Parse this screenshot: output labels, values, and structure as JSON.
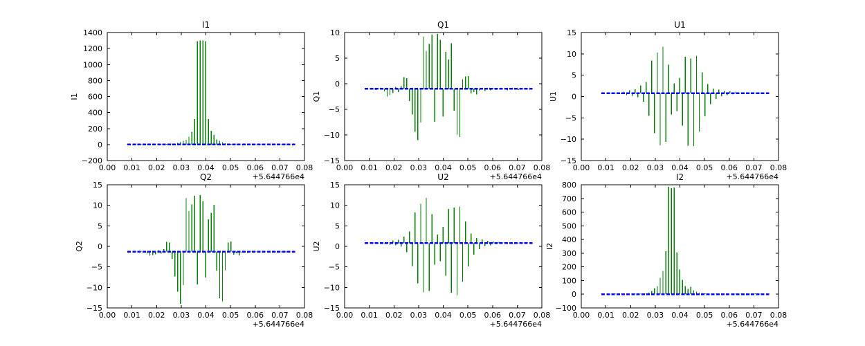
{
  "figure": {
    "background": "#ffffff",
    "axes_color": "#000000",
    "text_color": "#000000",
    "series_colors": {
      "spikes_green": "#008000",
      "baseline_blue": "#0000ff"
    },
    "grid": false,
    "legend": false
  },
  "chart_data": {
    "type": "line",
    "style": "2x3 grid of vertical-spike time-series (green spikes from a dashed blue flat baseline), matplotlib classic style",
    "x_offset_text": "+5.644766e4",
    "xlim": [
      0.0,
      0.08
    ],
    "xticks": [
      0.0,
      0.01,
      0.02,
      0.03,
      0.04,
      0.05,
      0.06,
      0.07,
      0.08
    ],
    "xtick_labels": [
      "0.00",
      "0.01",
      "0.02",
      "0.03",
      "0.04",
      "0.05",
      "0.06",
      "0.07",
      "0.08"
    ],
    "x_shared": [
      0.0082,
      0.00933,
      0.01047,
      0.0116,
      0.01273,
      0.01387,
      0.015,
      0.01613,
      0.01727,
      0.0184,
      0.01953,
      0.02067,
      0.0218,
      0.02293,
      0.02407,
      0.0252,
      0.02633,
      0.02747,
      0.0286,
      0.02973,
      0.03087,
      0.032,
      0.03313,
      0.03427,
      0.0354,
      0.03653,
      0.03767,
      0.0388,
      0.03993,
      0.04107,
      0.0422,
      0.04333,
      0.04447,
      0.0456,
      0.04673,
      0.04787,
      0.049,
      0.05013,
      0.05127,
      0.0524,
      0.05353,
      0.05467,
      0.0558,
      0.05693,
      0.05807,
      0.0592,
      0.06033,
      0.06147,
      0.0626,
      0.06373,
      0.06487,
      0.066,
      0.06713,
      0.06827,
      0.0694,
      0.07053,
      0.07167,
      0.0728,
      0.07393,
      0.07507,
      0.0762
    ],
    "subplots": [
      {
        "title": "I1",
        "ylabel": "I1",
        "ylim": [
          -200,
          1400
        ],
        "yticks": [
          -200,
          0,
          200,
          400,
          600,
          800,
          1000,
          1200,
          1400
        ],
        "baseline": 0,
        "values": [
          2,
          4,
          1,
          5,
          3,
          2,
          6,
          3,
          4,
          2,
          5,
          3,
          2,
          4,
          6,
          8,
          10,
          14,
          20,
          30,
          45,
          60,
          100,
          160,
          320,
          1290,
          1300,
          1300,
          1290,
          320,
          170,
          120,
          65,
          45,
          28,
          18,
          12,
          8,
          5,
          3,
          6,
          2,
          4,
          3,
          5,
          2,
          4,
          6,
          3,
          2,
          5,
          3,
          4,
          2,
          5,
          3,
          4,
          2,
          6,
          3,
          4
        ]
      },
      {
        "title": "Q1",
        "ylabel": "Q1",
        "ylim": [
          -15,
          10
        ],
        "yticks": [
          -15,
          -10,
          -5,
          0,
          5,
          10
        ],
        "baseline": -1,
        "values": [
          -1.0,
          -0.9,
          -1.15,
          -0.95,
          -1.2,
          -0.9,
          -1.1,
          -1.5,
          -2.5,
          -2.2,
          -1.8,
          -0.6,
          -1.6,
          -0.5,
          1.3,
          1.1,
          -3.4,
          -6.0,
          -9.4,
          -11.0,
          -7.6,
          9.2,
          6.4,
          7.8,
          9.6,
          -7.4,
          9.7,
          8.6,
          -6.4,
          6.2,
          4.7,
          7.9,
          -5.3,
          -9.9,
          -10.4,
          0.9,
          1.4,
          1.5,
          -1.9,
          -1.6,
          -2.1,
          -1.3,
          -0.8,
          -1.4,
          -1.0,
          -1.3,
          -0.85,
          -1.2,
          -1.0,
          -1.15,
          -0.9,
          -1.25,
          -1.0,
          -1.1,
          -0.95,
          -1.2,
          -1.0,
          -1.1,
          -0.9,
          -1.15,
          -1.0
        ]
      },
      {
        "title": "U1",
        "ylabel": "U1",
        "ylim": [
          -15,
          15
        ],
        "yticks": [
          -15,
          -10,
          -5,
          0,
          5,
          10,
          15
        ],
        "baseline": 0.8,
        "values": [
          0.8,
          0.7,
          0.95,
          0.75,
          0.9,
          0.7,
          1.0,
          0.6,
          1.1,
          0.3,
          1.5,
          0.2,
          1.7,
          -0.2,
          2.6,
          -1.2,
          3.4,
          -4.5,
          8.4,
          -8.6,
          10.3,
          -11.4,
          11.7,
          -10.6,
          7.5,
          -4.2,
          3.1,
          -3.4,
          4.4,
          -6.8,
          9.3,
          -11.5,
          8.9,
          -11.6,
          9.6,
          -8.2,
          5.7,
          -4.6,
          2.9,
          -1.8,
          1.9,
          -0.6,
          1.6,
          0.1,
          1.3,
          0.3,
          1.2,
          0.5,
          1.1,
          0.6,
          1.0,
          0.65,
          0.95,
          0.7,
          0.9,
          0.72,
          0.88,
          0.74,
          0.86,
          0.76,
          0.84
        ]
      },
      {
        "title": "Q2",
        "ylabel": "Q2",
        "ylim": [
          -15,
          15
        ],
        "yticks": [
          -15,
          -10,
          -5,
          0,
          5,
          10,
          15
        ],
        "baseline": -1.3,
        "values": [
          -1.3,
          -1.2,
          -1.45,
          -1.25,
          -1.5,
          -1.2,
          -1.4,
          -1.8,
          -2.3,
          -2.1,
          -1.9,
          -0.9,
          -1.8,
          -0.7,
          1.1,
          0.9,
          -3.0,
          -7.3,
          -11.0,
          -14.0,
          -9.4,
          11.7,
          8.6,
          10.2,
          12.3,
          -9.3,
          12.5,
          11.0,
          -7.6,
          6.6,
          8.2,
          10.1,
          -5.9,
          -12.6,
          -13.4,
          -5.8,
          0.9,
          1.2,
          -2.0,
          -1.7,
          -2.2,
          -1.5,
          -1.1,
          -1.6,
          -1.2,
          -1.5,
          -1.15,
          -1.4,
          -1.3,
          -1.45,
          -1.2,
          -1.5,
          -1.3,
          -1.4,
          -1.25,
          -1.45,
          -1.3,
          -1.4,
          -1.2,
          -1.45,
          -1.3
        ]
      },
      {
        "title": "U2",
        "ylabel": "U2",
        "ylim": [
          -15,
          15
        ],
        "yticks": [
          -15,
          -10,
          -5,
          0,
          5,
          10,
          15
        ],
        "baseline": 0.8,
        "values": [
          0.8,
          0.72,
          0.93,
          0.76,
          0.9,
          0.68,
          1.0,
          0.62,
          1.05,
          0.35,
          1.4,
          0.25,
          1.6,
          -0.1,
          2.4,
          -1.4,
          3.6,
          -4.8,
          8.3,
          -9.0,
          10.4,
          -11.2,
          11.8,
          -10.9,
          7.8,
          -4.5,
          2.9,
          -3.6,
          4.7,
          -7.2,
          9.1,
          -11.3,
          9.4,
          -11.9,
          9.7,
          -8.6,
          6.1,
          -4.9,
          3.1,
          -2.0,
          2.0,
          -0.7,
          1.7,
          0.05,
          1.35,
          0.28,
          1.2,
          0.48,
          1.1,
          0.58,
          1.02,
          0.63,
          0.96,
          0.68,
          0.92,
          0.7,
          0.9,
          0.73,
          0.87,
          0.75,
          0.85
        ]
      },
      {
        "title": "I2",
        "ylabel": "I2",
        "ylim": [
          -100,
          800
        ],
        "yticks": [
          -100,
          0,
          100,
          200,
          300,
          400,
          500,
          600,
          700,
          800
        ],
        "baseline": 0,
        "values": [
          3,
          2,
          4,
          2,
          5,
          3,
          2,
          4,
          3,
          5,
          2,
          4,
          3,
          2,
          4,
          4,
          6,
          10,
          25,
          45,
          60,
          120,
          170,
          315,
          785,
          775,
          780,
          305,
          180,
          105,
          60,
          40,
          55,
          30,
          20,
          12,
          8,
          5,
          4,
          2,
          5,
          3,
          2,
          4,
          3,
          5,
          2,
          3,
          4,
          2,
          5,
          3,
          2,
          4,
          3,
          5,
          2,
          4,
          3,
          2,
          4
        ]
      }
    ]
  }
}
